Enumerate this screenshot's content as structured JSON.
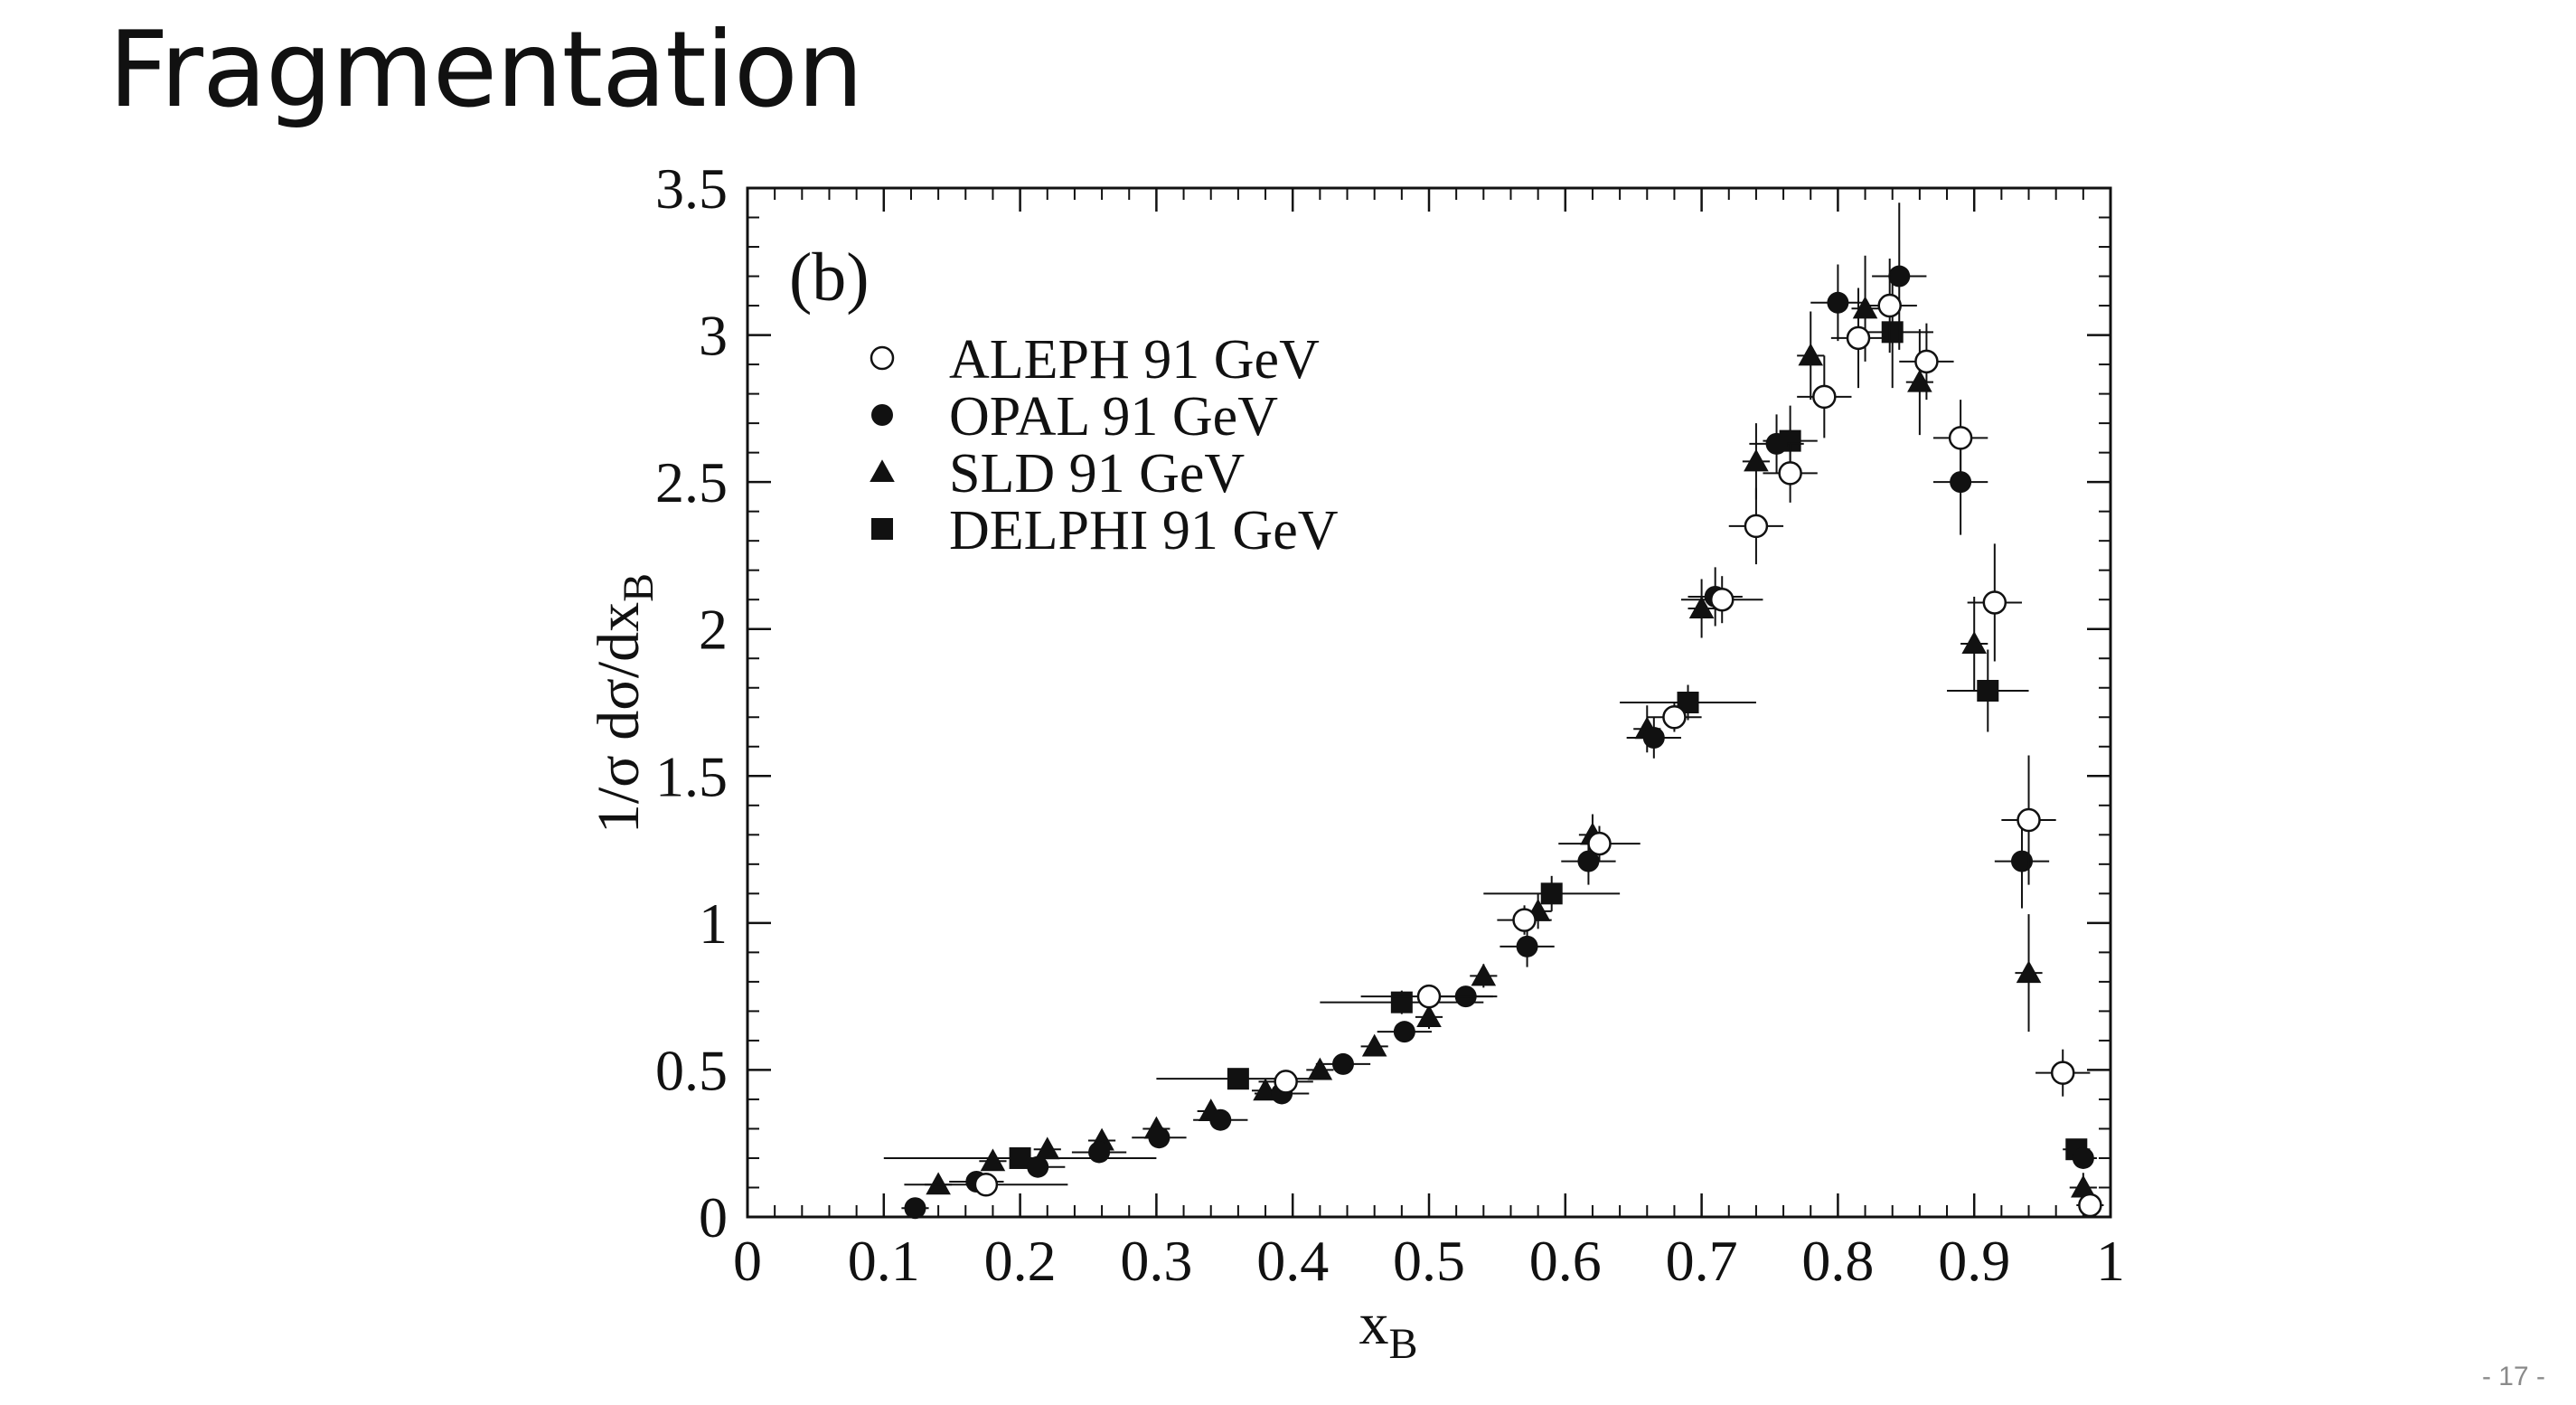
{
  "slide": {
    "title": "Fragmentation",
    "page_number": "- 17 -"
  },
  "chart_data": {
    "type": "scatter",
    "panel_label": "(b)",
    "xlabel": "x",
    "xlabel_sub": "B",
    "ylabel": "1/σ  dσ/dx",
    "ylabel_sub": "B",
    "xlim": [
      0,
      1
    ],
    "ylim": [
      0,
      3.5
    ],
    "x_ticks": [
      0,
      0.1,
      0.2,
      0.3,
      0.4,
      0.5,
      0.6,
      0.7,
      0.8,
      0.9,
      1
    ],
    "x_tick_labels": [
      "0",
      "0.1",
      "0.2",
      "0.3",
      "0.4",
      "0.5",
      "0.6",
      "0.7",
      "0.8",
      "0.9",
      "1"
    ],
    "y_ticks": [
      0,
      0.5,
      1,
      1.5,
      2,
      2.5,
      3,
      3.5
    ],
    "y_tick_labels": [
      "0",
      "0.5",
      "1",
      "1.5",
      "2",
      "2.5",
      "3",
      "3.5"
    ],
    "grid": false,
    "legend_position": "top-left",
    "series": [
      {
        "name": "ALEPH 91 GeV",
        "marker": "open-circle",
        "points": [
          [
            0.175,
            0.11,
            0.02,
            0.03,
            0.06
          ],
          [
            0.395,
            0.46,
            0.02,
            0.03,
            0.02
          ],
          [
            0.5,
            0.75,
            0.03,
            0.04,
            0.05
          ],
          [
            0.57,
            1.01,
            0.02,
            0.05,
            0.02
          ],
          [
            0.625,
            1.27,
            0.04,
            0.06,
            0.03
          ],
          [
            0.68,
            1.7,
            0.02,
            0.05,
            0.02
          ],
          [
            0.715,
            2.1,
            0.04,
            0.08,
            0.03
          ],
          [
            0.74,
            2.35,
            0.02,
            0.13,
            0.02
          ],
          [
            0.765,
            2.53,
            0.03,
            0.1,
            0.02
          ],
          [
            0.79,
            2.79,
            0.05,
            0.14,
            0.02
          ],
          [
            0.815,
            2.99,
            0.04,
            0.17,
            0.02
          ],
          [
            0.838,
            3.1,
            0.02,
            0.16,
            0.02
          ],
          [
            0.865,
            2.91,
            0.02,
            0.13,
            0.02
          ],
          [
            0.89,
            2.65,
            0.02,
            0.13,
            0.02
          ],
          [
            0.915,
            2.09,
            0.02,
            0.2,
            0.02
          ],
          [
            0.94,
            1.35,
            0.02,
            0.22,
            0.02
          ],
          [
            0.965,
            0.49,
            0.02,
            0.08,
            0.02
          ],
          [
            0.985,
            0.04,
            0.01,
            0.04,
            0.01
          ]
        ]
      },
      {
        "name": "OPAL 91 GeV",
        "marker": "filled-circle",
        "points": [
          [
            0.123,
            0.03,
            0.02,
            0.02,
            0.01
          ],
          [
            0.168,
            0.12,
            0.02,
            0.03,
            0.02
          ],
          [
            0.213,
            0.17,
            0.02,
            0.03,
            0.02
          ],
          [
            0.258,
            0.22,
            0.02,
            0.03,
            0.02
          ],
          [
            0.302,
            0.27,
            0.02,
            0.03,
            0.02
          ],
          [
            0.347,
            0.33,
            0.02,
            0.03,
            0.02
          ],
          [
            0.392,
            0.42,
            0.02,
            0.03,
            0.02
          ],
          [
            0.437,
            0.52,
            0.02,
            0.03,
            0.02
          ],
          [
            0.482,
            0.63,
            0.02,
            0.03,
            0.02
          ],
          [
            0.527,
            0.75,
            0.02,
            0.03,
            0.02
          ],
          [
            0.572,
            0.92,
            0.02,
            0.07,
            0.02
          ],
          [
            0.617,
            1.21,
            0.02,
            0.08,
            0.02
          ],
          [
            0.665,
            1.63,
            0.02,
            0.07,
            0.02
          ],
          [
            0.71,
            2.11,
            0.02,
            0.1,
            0.02
          ],
          [
            0.755,
            2.63,
            0.02,
            0.1,
            0.02
          ],
          [
            0.8,
            3.11,
            0.02,
            0.13,
            0.02
          ],
          [
            0.845,
            3.2,
            0.02,
            0.25,
            0.02
          ],
          [
            0.89,
            2.5,
            0.02,
            0.18,
            0.02
          ],
          [
            0.935,
            1.21,
            0.02,
            0.16,
            0.02
          ],
          [
            0.98,
            0.2,
            0.02,
            0.03,
            0.01
          ]
        ]
      },
      {
        "name": "SLD 91 GeV",
        "marker": "filled-triangle",
        "points": [
          [
            0.14,
            0.11,
            0.02,
            0.02,
            0.01
          ],
          [
            0.18,
            0.19,
            0.02,
            0.03,
            0.01
          ],
          [
            0.22,
            0.23,
            0.02,
            0.03,
            0.01
          ],
          [
            0.26,
            0.26,
            0.02,
            0.03,
            0.01
          ],
          [
            0.3,
            0.3,
            0.02,
            0.03,
            0.01
          ],
          [
            0.34,
            0.36,
            0.02,
            0.03,
            0.01
          ],
          [
            0.38,
            0.43,
            0.02,
            0.03,
            0.01
          ],
          [
            0.42,
            0.5,
            0.02,
            0.03,
            0.01
          ],
          [
            0.46,
            0.58,
            0.02,
            0.03,
            0.01
          ],
          [
            0.5,
            0.68,
            0.02,
            0.04,
            0.01
          ],
          [
            0.54,
            0.82,
            0.02,
            0.04,
            0.01
          ],
          [
            0.58,
            1.04,
            0.02,
            0.06,
            0.01
          ],
          [
            0.62,
            1.3,
            0.02,
            0.07,
            0.01
          ],
          [
            0.66,
            1.66,
            0.02,
            0.08,
            0.01
          ],
          [
            0.7,
            2.07,
            0.02,
            0.1,
            0.01
          ],
          [
            0.74,
            2.57,
            0.02,
            0.13,
            0.01
          ],
          [
            0.78,
            2.93,
            0.02,
            0.15,
            0.01
          ],
          [
            0.82,
            3.09,
            0.02,
            0.18,
            0.01
          ],
          [
            0.86,
            2.84,
            0.02,
            0.18,
            0.01
          ],
          [
            0.9,
            1.95,
            0.02,
            0.16,
            0.01
          ],
          [
            0.94,
            0.83,
            0.02,
            0.2,
            0.01
          ],
          [
            0.98,
            0.1,
            0.02,
            0.05,
            0.01
          ]
        ]
      },
      {
        "name": "DELPHI 91 GeV",
        "marker": "filled-square",
        "points": [
          [
            0.2,
            0.2,
            0.02,
            0.02,
            0.1
          ],
          [
            0.36,
            0.47,
            0.02,
            0.03,
            0.06
          ],
          [
            0.48,
            0.73,
            0.02,
            0.04,
            0.06
          ],
          [
            0.59,
            1.1,
            0.02,
            0.06,
            0.05
          ],
          [
            0.69,
            1.75,
            0.02,
            0.06,
            0.05
          ],
          [
            0.765,
            2.64,
            0.02,
            0.12,
            0.02
          ],
          [
            0.84,
            3.01,
            0.02,
            0.19,
            0.03
          ],
          [
            0.91,
            1.79,
            0.02,
            0.14,
            0.03
          ],
          [
            0.975,
            0.23,
            0.02,
            0.03,
            0.01
          ]
        ]
      }
    ]
  }
}
